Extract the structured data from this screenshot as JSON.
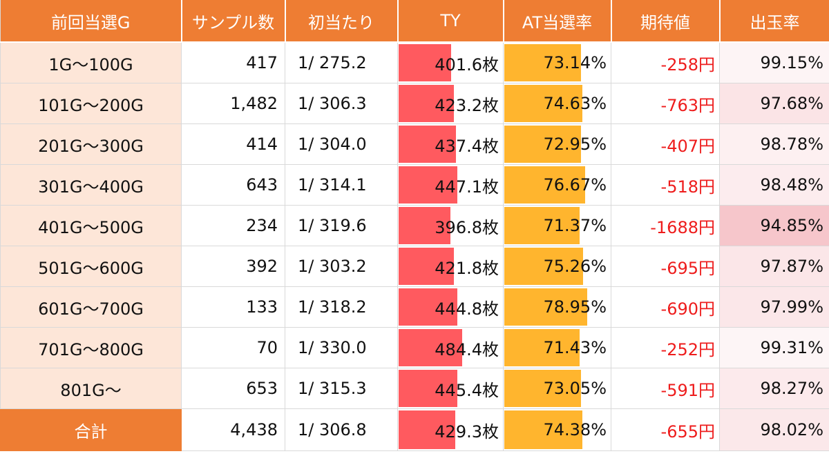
{
  "headers": [
    "前回当選G",
    "サンプル数",
    "初当たり",
    "TY",
    "AT当選率",
    "期待値",
    "出玉率"
  ],
  "colors": {
    "header_bg": "#ee7d33",
    "label_bg": "#fde6d8",
    "ty_bar": "#ff5a5f",
    "at_bar": "#ffb52e",
    "negative_text": "#ee1c1c",
    "payout_bg": "#f6c6cb"
  },
  "ty_scale_max": 484.4,
  "at_scale_max": 78.95,
  "rows": [
    {
      "label": "1G〜100G",
      "samples": "417",
      "hit": "1/ 275.2",
      "ty": "401.6枚",
      "ty_value": 401.6,
      "at": "73.14%",
      "at_value": 73.14,
      "ev": "-258円",
      "payout": "99.15%",
      "payout_value": 99.15
    },
    {
      "label": "101G〜200G",
      "samples": "1,482",
      "hit": "1/ 306.3",
      "ty": "423.2枚",
      "ty_value": 423.2,
      "at": "74.63%",
      "at_value": 74.63,
      "ev": "-763円",
      "payout": "97.68%",
      "payout_value": 97.68
    },
    {
      "label": "201G〜300G",
      "samples": "414",
      "hit": "1/ 304.0",
      "ty": "437.4枚",
      "ty_value": 437.4,
      "at": "72.95%",
      "at_value": 72.95,
      "ev": "-407円",
      "payout": "98.78%",
      "payout_value": 98.78
    },
    {
      "label": "301G〜400G",
      "samples": "643",
      "hit": "1/ 314.1",
      "ty": "447.1枚",
      "ty_value": 447.1,
      "at": "76.67%",
      "at_value": 76.67,
      "ev": "-518円",
      "payout": "98.48%",
      "payout_value": 98.48
    },
    {
      "label": "401G〜500G",
      "samples": "234",
      "hit": "1/ 319.6",
      "ty": "396.8枚",
      "ty_value": 396.8,
      "at": "71.37%",
      "at_value": 71.37,
      "ev": "-1688円",
      "payout": "94.85%",
      "payout_value": 94.85
    },
    {
      "label": "501G〜600G",
      "samples": "392",
      "hit": "1/ 303.2",
      "ty": "421.8枚",
      "ty_value": 421.8,
      "at": "75.26%",
      "at_value": 75.26,
      "ev": "-695円",
      "payout": "97.87%",
      "payout_value": 97.87
    },
    {
      "label": "601G〜700G",
      "samples": "133",
      "hit": "1/ 318.2",
      "ty": "444.8枚",
      "ty_value": 444.8,
      "at": "78.95%",
      "at_value": 78.95,
      "ev": "-690円",
      "payout": "97.99%",
      "payout_value": 97.99
    },
    {
      "label": "701G〜800G",
      "samples": "70",
      "hit": "1/ 330.0",
      "ty": "484.4枚",
      "ty_value": 484.4,
      "at": "71.43%",
      "at_value": 71.43,
      "ev": "-252円",
      "payout": "99.31%",
      "payout_value": 99.31
    },
    {
      "label": "801G〜",
      "samples": "653",
      "hit": "1/ 315.3",
      "ty": "445.4枚",
      "ty_value": 445.4,
      "at": "73.05%",
      "at_value": 73.05,
      "ev": "-591円",
      "payout": "98.27%",
      "payout_value": 98.27
    }
  ],
  "total": {
    "label": "合計",
    "samples": "4,438",
    "hit": "1/ 306.8",
    "ty": "429.3枚",
    "ty_value": 429.3,
    "at": "74.38%",
    "at_value": 74.38,
    "ev": "-655円",
    "payout": "98.02%",
    "payout_value": 98.02
  }
}
